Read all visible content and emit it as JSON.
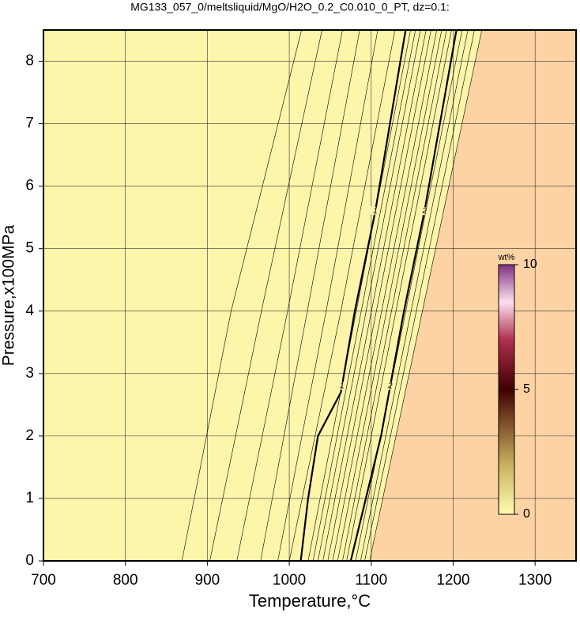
{
  "chart_data": {
    "type": "contour",
    "title": "MG133_057_0/meltsliquid/MgO/H2O_0.2_C0.010_0_PT, dz=0.1:",
    "xlabel": "Temperature,°C",
    "ylabel": "Pressure,x100MPa",
    "xlim": [
      700,
      1350
    ],
    "xticks": [
      700,
      800,
      900,
      1000,
      1100,
      1200,
      1300
    ],
    "ylim": [
      0,
      8.5
    ],
    "yticks": [
      0,
      1,
      2,
      3,
      4,
      5,
      6,
      7,
      8
    ],
    "grid": true,
    "fill_low": "#fcf5aa",
    "fill_high": "#fdd3a4",
    "contours": [
      {
        "level": 0.4,
        "x": [
          869,
          929,
          1015
        ],
        "y": [
          0,
          4,
          8.5
        ]
      },
      {
        "level": 0.5,
        "x": [
          903,
          966,
          1040
        ],
        "y": [
          0,
          4,
          8.5
        ]
      },
      {
        "level": 0.6,
        "x": [
          936,
          998,
          1065
        ],
        "y": [
          0,
          4,
          8.5
        ]
      },
      {
        "level": 0.7,
        "x": [
          965,
          1022,
          1086
        ],
        "y": [
          0,
          4,
          8.5
        ]
      },
      {
        "level": 0.8,
        "x": [
          986,
          1045,
          1108
        ],
        "y": [
          0,
          4,
          8.5
        ]
      },
      {
        "level": 0.9,
        "x": [
          1000,
          1063,
          1129
        ],
        "y": [
          0,
          4,
          8.5
        ]
      },
      {
        "level": 1,
        "x": [
          1014,
          1023,
          1035,
          1063,
          1080,
          1105,
          1142
        ],
        "y": [
          0,
          1,
          2,
          2.7,
          4,
          5.6,
          8.5
        ]
      },
      {
        "level": 1.1,
        "x": [
          1023,
          1148
        ],
        "y": [
          0,
          8.5
        ]
      },
      {
        "level": 1.2,
        "x": [
          1029,
          1154
        ],
        "y": [
          0,
          8.5
        ]
      },
      {
        "level": 1.3,
        "x": [
          1035,
          1160
        ],
        "y": [
          0,
          8.5
        ]
      },
      {
        "level": 1.4,
        "x": [
          1041,
          1167
        ],
        "y": [
          0,
          8.5
        ]
      },
      {
        "level": 1.5,
        "x": [
          1047,
          1173
        ],
        "y": [
          0,
          8.5
        ]
      },
      {
        "level": 1.6,
        "x": [
          1053,
          1180
        ],
        "y": [
          0,
          8.5
        ]
      },
      {
        "level": 1.7,
        "x": [
          1059,
          1186
        ],
        "y": [
          0,
          8.5
        ]
      },
      {
        "level": 1.8,
        "x": [
          1065,
          1192
        ],
        "y": [
          0,
          8.5
        ]
      },
      {
        "level": 1.9,
        "x": [
          1070,
          1198
        ],
        "y": [
          0,
          8.5
        ]
      },
      {
        "level": 2,
        "x": [
          1075,
          1112,
          1140,
          1165,
          1204
        ],
        "y": [
          0,
          2,
          4,
          5.6,
          8.5
        ]
      },
      {
        "level": 2.1,
        "x": [
          1081,
          1211
        ],
        "y": [
          0,
          8.5
        ]
      },
      {
        "level": 2.2,
        "x": [
          1087,
          1218
        ],
        "y": [
          0,
          8.5
        ]
      },
      {
        "level": 2.3,
        "x": [
          1092,
          1226
        ],
        "y": [
          0,
          8.5
        ]
      },
      {
        "level": 2.4,
        "x": [
          1098,
          1235
        ],
        "y": [
          0,
          8.5
        ]
      }
    ],
    "labeled_levels": [
      1,
      2
    ],
    "colorbar": {
      "label": "wt%",
      "lim": [
        0,
        10
      ],
      "ticks": [
        0,
        5,
        10
      ]
    }
  }
}
